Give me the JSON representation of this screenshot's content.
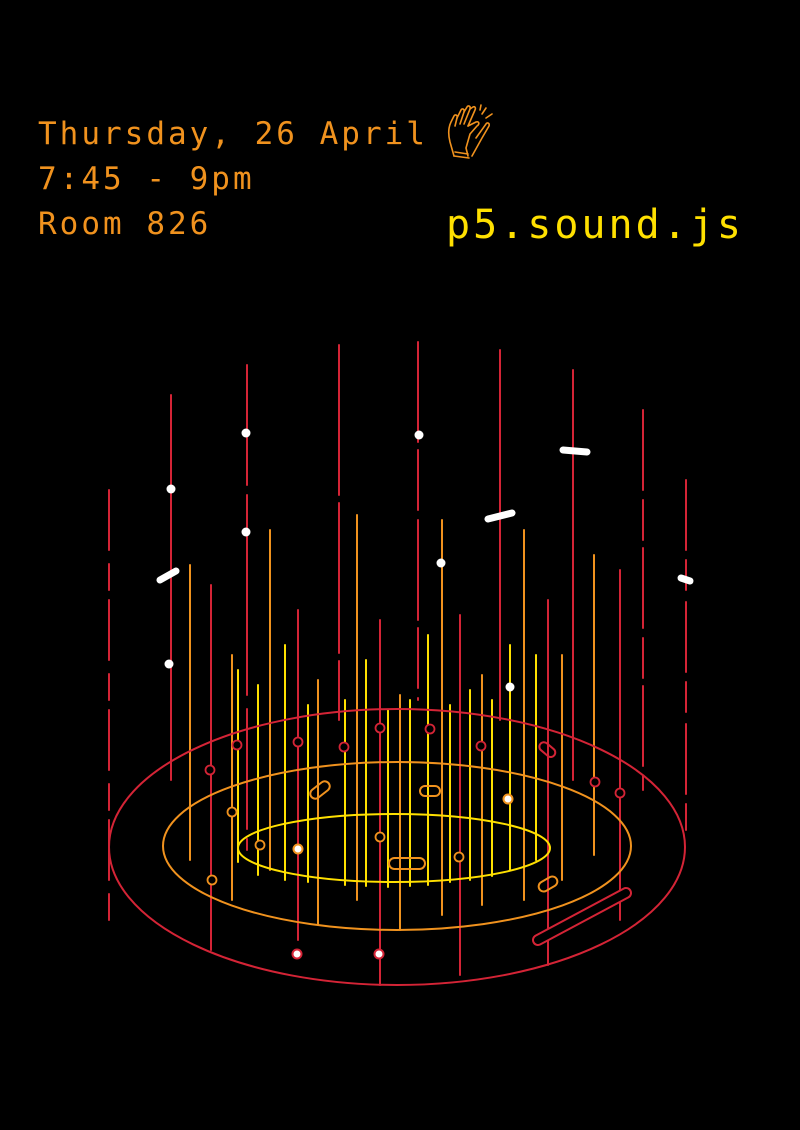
{
  "event": {
    "date": "Thursday, 26 April",
    "time": "7:45 - 9pm",
    "room": "Room 826"
  },
  "title": "p5.sound.js",
  "colors": {
    "background": "#000000",
    "orange": "#f0921e",
    "yellow": "#ffe000",
    "red": "#d42436",
    "white": "#ffffff"
  },
  "icons": [
    "clapping-hands-icon"
  ]
}
